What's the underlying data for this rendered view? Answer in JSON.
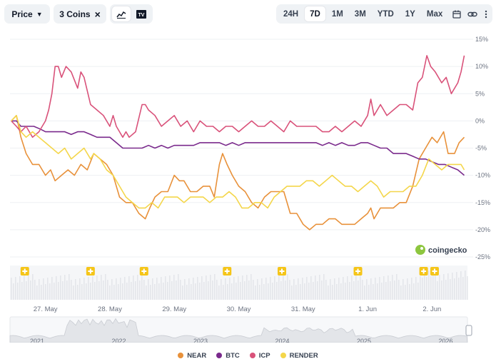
{
  "toolbar": {
    "price_label": "Price",
    "coins_label": "3 Coins",
    "close_glyph": "×",
    "ranges": [
      "24H",
      "7D",
      "1M",
      "3M",
      "YTD",
      "1Y",
      "Max"
    ],
    "active_range": "7D",
    "icons": [
      "line-chart-icon",
      "tradingview-icon",
      "calendar-icon",
      "link-icon",
      "more-icon"
    ]
  },
  "colors": {
    "NEAR": "#e8913a",
    "BTC": "#7a2a8c",
    "ICP": "#d9527a",
    "RENDER": "#f4d64a",
    "muted": "#6b7280",
    "grid": "#eef0f3"
  },
  "watermark": "coingecko",
  "legend": [
    "NEAR",
    "BTC",
    "ICP",
    "RENDER"
  ],
  "navigator": {
    "years": [
      "2021",
      "2022",
      "2023",
      "2024",
      "2025",
      "2026"
    ]
  },
  "chart_data": {
    "type": "line",
    "x_labels": [
      "27. May",
      "28. May",
      "29. May",
      "30. May",
      "31. May",
      "1. Jun",
      "2. Jun"
    ],
    "x_range": [
      26.45,
      33.55
    ],
    "y_unit": "%",
    "y_ticks": [
      15,
      10,
      5,
      0,
      -5,
      -10,
      -15,
      -20,
      -25
    ],
    "ylim": [
      -25,
      15
    ],
    "event_markers": [
      26.68,
      27.7,
      28.53,
      29.82,
      30.67,
      31.85,
      32.87,
      33.04
    ],
    "series": [
      {
        "name": "NEAR",
        "points": [
          [
            26.47,
            0
          ],
          [
            26.55,
            1
          ],
          [
            26.62,
            -3
          ],
          [
            26.7,
            -6
          ],
          [
            26.8,
            -8
          ],
          [
            26.9,
            -8
          ],
          [
            27.0,
            -10
          ],
          [
            27.08,
            -9
          ],
          [
            27.15,
            -11
          ],
          [
            27.25,
            -10
          ],
          [
            27.35,
            -9
          ],
          [
            27.45,
            -10
          ],
          [
            27.55,
            -8
          ],
          [
            27.65,
            -9
          ],
          [
            27.75,
            -6
          ],
          [
            27.85,
            -7
          ],
          [
            27.95,
            -8
          ],
          [
            28.05,
            -10
          ],
          [
            28.15,
            -14
          ],
          [
            28.25,
            -15
          ],
          [
            28.35,
            -15
          ],
          [
            28.45,
            -17
          ],
          [
            28.55,
            -18
          ],
          [
            28.62,
            -16
          ],
          [
            28.7,
            -14
          ],
          [
            28.8,
            -13
          ],
          [
            28.9,
            -13
          ],
          [
            29.0,
            -10
          ],
          [
            29.08,
            -11
          ],
          [
            29.15,
            -11
          ],
          [
            29.25,
            -13
          ],
          [
            29.35,
            -13
          ],
          [
            29.45,
            -12
          ],
          [
            29.55,
            -12
          ],
          [
            29.62,
            -14
          ],
          [
            29.7,
            -8
          ],
          [
            29.75,
            -6
          ],
          [
            29.82,
            -8
          ],
          [
            29.9,
            -10
          ],
          [
            30.0,
            -12
          ],
          [
            30.1,
            -13
          ],
          [
            30.2,
            -15
          ],
          [
            30.3,
            -16
          ],
          [
            30.4,
            -14
          ],
          [
            30.5,
            -13
          ],
          [
            30.6,
            -13
          ],
          [
            30.7,
            -13
          ],
          [
            30.8,
            -17
          ],
          [
            30.9,
            -17
          ],
          [
            31.0,
            -19
          ],
          [
            31.1,
            -20
          ],
          [
            31.2,
            -19
          ],
          [
            31.3,
            -19
          ],
          [
            31.4,
            -18
          ],
          [
            31.5,
            -18
          ],
          [
            31.6,
            -19
          ],
          [
            31.7,
            -19
          ],
          [
            31.8,
            -19
          ],
          [
            31.9,
            -18
          ],
          [
            32.0,
            -17
          ],
          [
            32.05,
            -16
          ],
          [
            32.1,
            -18
          ],
          [
            32.2,
            -16
          ],
          [
            32.3,
            -16
          ],
          [
            32.4,
            -16
          ],
          [
            32.5,
            -15
          ],
          [
            32.6,
            -15
          ],
          [
            32.7,
            -12
          ],
          [
            32.8,
            -7
          ],
          [
            32.9,
            -5
          ],
          [
            33.0,
            -3
          ],
          [
            33.08,
            -4
          ],
          [
            33.18,
            -2
          ],
          [
            33.25,
            -6
          ],
          [
            33.35,
            -6
          ],
          [
            33.42,
            -4
          ],
          [
            33.5,
            -3
          ]
        ]
      },
      {
        "name": "BTC",
        "points": [
          [
            26.47,
            0
          ],
          [
            26.55,
            0
          ],
          [
            26.62,
            -1
          ],
          [
            26.72,
            -1
          ],
          [
            26.82,
            -1
          ],
          [
            26.92,
            -1.5
          ],
          [
            27.0,
            -2
          ],
          [
            27.1,
            -2
          ],
          [
            27.2,
            -2
          ],
          [
            27.3,
            -2
          ],
          [
            27.4,
            -2.5
          ],
          [
            27.5,
            -2
          ],
          [
            27.6,
            -2
          ],
          [
            27.7,
            -2.5
          ],
          [
            27.8,
            -3
          ],
          [
            27.9,
            -3
          ],
          [
            28.0,
            -3
          ],
          [
            28.1,
            -4
          ],
          [
            28.2,
            -5
          ],
          [
            28.3,
            -5
          ],
          [
            28.4,
            -5
          ],
          [
            28.5,
            -5
          ],
          [
            28.6,
            -4.5
          ],
          [
            28.7,
            -5
          ],
          [
            28.8,
            -4.5
          ],
          [
            28.9,
            -5
          ],
          [
            29.0,
            -4.5
          ],
          [
            29.1,
            -4.5
          ],
          [
            29.2,
            -4.5
          ],
          [
            29.3,
            -4.5
          ],
          [
            29.4,
            -4
          ],
          [
            29.5,
            -4
          ],
          [
            29.6,
            -4
          ],
          [
            29.7,
            -4
          ],
          [
            29.8,
            -4.5
          ],
          [
            29.9,
            -4
          ],
          [
            30.0,
            -4.5
          ],
          [
            30.1,
            -4
          ],
          [
            30.2,
            -4
          ],
          [
            30.3,
            -4
          ],
          [
            30.4,
            -4
          ],
          [
            30.5,
            -4
          ],
          [
            30.6,
            -4
          ],
          [
            30.7,
            -4
          ],
          [
            30.8,
            -4
          ],
          [
            30.9,
            -4
          ],
          [
            31.0,
            -4
          ],
          [
            31.1,
            -4
          ],
          [
            31.2,
            -4
          ],
          [
            31.3,
            -4.5
          ],
          [
            31.4,
            -4
          ],
          [
            31.5,
            -4.5
          ],
          [
            31.6,
            -4
          ],
          [
            31.7,
            -4.5
          ],
          [
            31.8,
            -4.5
          ],
          [
            31.9,
            -4
          ],
          [
            32.0,
            -4
          ],
          [
            32.1,
            -4.5
          ],
          [
            32.2,
            -5
          ],
          [
            32.3,
            -5
          ],
          [
            32.4,
            -6
          ],
          [
            32.5,
            -6
          ],
          [
            32.6,
            -6
          ],
          [
            32.7,
            -6.5
          ],
          [
            32.8,
            -7
          ],
          [
            32.9,
            -7
          ],
          [
            33.0,
            -7.5
          ],
          [
            33.1,
            -8
          ],
          [
            33.2,
            -8
          ],
          [
            33.3,
            -8.5
          ],
          [
            33.4,
            -9
          ],
          [
            33.5,
            -10
          ]
        ]
      },
      {
        "name": "ICP",
        "points": [
          [
            26.47,
            0
          ],
          [
            26.55,
            -1
          ],
          [
            26.62,
            -2
          ],
          [
            26.7,
            -1
          ],
          [
            26.8,
            -3
          ],
          [
            26.9,
            -2
          ],
          [
            27.0,
            0
          ],
          [
            27.05,
            2
          ],
          [
            27.1,
            5
          ],
          [
            27.15,
            10
          ],
          [
            27.2,
            10
          ],
          [
            27.25,
            8
          ],
          [
            27.32,
            10
          ],
          [
            27.4,
            9
          ],
          [
            27.5,
            6
          ],
          [
            27.55,
            9
          ],
          [
            27.6,
            8
          ],
          [
            27.7,
            3
          ],
          [
            27.8,
            2
          ],
          [
            27.9,
            1
          ],
          [
            28.0,
            -1
          ],
          [
            28.05,
            1
          ],
          [
            28.1,
            -1
          ],
          [
            28.15,
            -2
          ],
          [
            28.2,
            -3
          ],
          [
            28.25,
            -2
          ],
          [
            28.3,
            -3
          ],
          [
            28.4,
            -2
          ],
          [
            28.5,
            3
          ],
          [
            28.55,
            3
          ],
          [
            28.6,
            2
          ],
          [
            28.7,
            1
          ],
          [
            28.8,
            -1
          ],
          [
            28.9,
            0
          ],
          [
            29.0,
            1
          ],
          [
            29.1,
            -1
          ],
          [
            29.2,
            0
          ],
          [
            29.3,
            -2
          ],
          [
            29.4,
            0
          ],
          [
            29.5,
            -1
          ],
          [
            29.6,
            -1
          ],
          [
            29.7,
            -2
          ],
          [
            29.8,
            -1
          ],
          [
            29.9,
            -1
          ],
          [
            30.0,
            -2
          ],
          [
            30.1,
            -1
          ],
          [
            30.2,
            0
          ],
          [
            30.3,
            -1
          ],
          [
            30.4,
            -1
          ],
          [
            30.5,
            0
          ],
          [
            30.6,
            -1
          ],
          [
            30.7,
            -2
          ],
          [
            30.8,
            0
          ],
          [
            30.9,
            -1
          ],
          [
            31.0,
            -1
          ],
          [
            31.1,
            -1
          ],
          [
            31.2,
            -1
          ],
          [
            31.3,
            -2
          ],
          [
            31.4,
            -2
          ],
          [
            31.5,
            -1
          ],
          [
            31.6,
            -2
          ],
          [
            31.7,
            -1
          ],
          [
            31.8,
            0
          ],
          [
            31.9,
            -1
          ],
          [
            32.0,
            1
          ],
          [
            32.05,
            4
          ],
          [
            32.1,
            1
          ],
          [
            32.2,
            3
          ],
          [
            32.3,
            1
          ],
          [
            32.4,
            2
          ],
          [
            32.5,
            3
          ],
          [
            32.6,
            3
          ],
          [
            32.7,
            2
          ],
          [
            32.78,
            7
          ],
          [
            32.85,
            8
          ],
          [
            32.92,
            12
          ],
          [
            32.98,
            10
          ],
          [
            33.05,
            9
          ],
          [
            33.15,
            7
          ],
          [
            33.22,
            8
          ],
          [
            33.3,
            5
          ],
          [
            33.4,
            7
          ],
          [
            33.45,
            9
          ],
          [
            33.5,
            12
          ]
        ]
      },
      {
        "name": "RENDER",
        "points": [
          [
            26.47,
            0
          ],
          [
            26.55,
            1
          ],
          [
            26.62,
            -2
          ],
          [
            26.7,
            -3
          ],
          [
            26.8,
            -2
          ],
          [
            26.9,
            -3
          ],
          [
            27.0,
            -4
          ],
          [
            27.1,
            -5
          ],
          [
            27.2,
            -6
          ],
          [
            27.3,
            -5
          ],
          [
            27.4,
            -7
          ],
          [
            27.5,
            -6
          ],
          [
            27.6,
            -5
          ],
          [
            27.7,
            -7
          ],
          [
            27.75,
            -6
          ],
          [
            27.85,
            -7
          ],
          [
            27.95,
            -9
          ],
          [
            28.05,
            -10
          ],
          [
            28.15,
            -12
          ],
          [
            28.25,
            -14
          ],
          [
            28.35,
            -15
          ],
          [
            28.45,
            -16
          ],
          [
            28.55,
            -16
          ],
          [
            28.65,
            -15
          ],
          [
            28.75,
            -16
          ],
          [
            28.85,
            -14
          ],
          [
            28.95,
            -14
          ],
          [
            29.05,
            -14
          ],
          [
            29.15,
            -15
          ],
          [
            29.25,
            -14
          ],
          [
            29.35,
            -14
          ],
          [
            29.45,
            -14
          ],
          [
            29.55,
            -15
          ],
          [
            29.65,
            -14
          ],
          [
            29.75,
            -14
          ],
          [
            29.85,
            -13
          ],
          [
            29.95,
            -14
          ],
          [
            30.05,
            -16
          ],
          [
            30.15,
            -16
          ],
          [
            30.25,
            -15
          ],
          [
            30.35,
            -15
          ],
          [
            30.45,
            -16
          ],
          [
            30.55,
            -14
          ],
          [
            30.65,
            -13
          ],
          [
            30.75,
            -12
          ],
          [
            30.85,
            -12
          ],
          [
            30.95,
            -12
          ],
          [
            31.05,
            -11
          ],
          [
            31.15,
            -11
          ],
          [
            31.25,
            -12
          ],
          [
            31.35,
            -11
          ],
          [
            31.45,
            -10
          ],
          [
            31.55,
            -11
          ],
          [
            31.65,
            -12
          ],
          [
            31.75,
            -12
          ],
          [
            31.85,
            -13
          ],
          [
            31.95,
            -12
          ],
          [
            32.05,
            -11
          ],
          [
            32.15,
            -12
          ],
          [
            32.25,
            -14
          ],
          [
            32.35,
            -13
          ],
          [
            32.45,
            -13
          ],
          [
            32.55,
            -13
          ],
          [
            32.65,
            -12
          ],
          [
            32.75,
            -12
          ],
          [
            32.85,
            -10
          ],
          [
            32.95,
            -7
          ],
          [
            33.05,
            -8
          ],
          [
            33.15,
            -9
          ],
          [
            33.25,
            -8
          ],
          [
            33.35,
            -8
          ],
          [
            33.45,
            -8
          ],
          [
            33.5,
            -9
          ]
        ]
      }
    ]
  }
}
